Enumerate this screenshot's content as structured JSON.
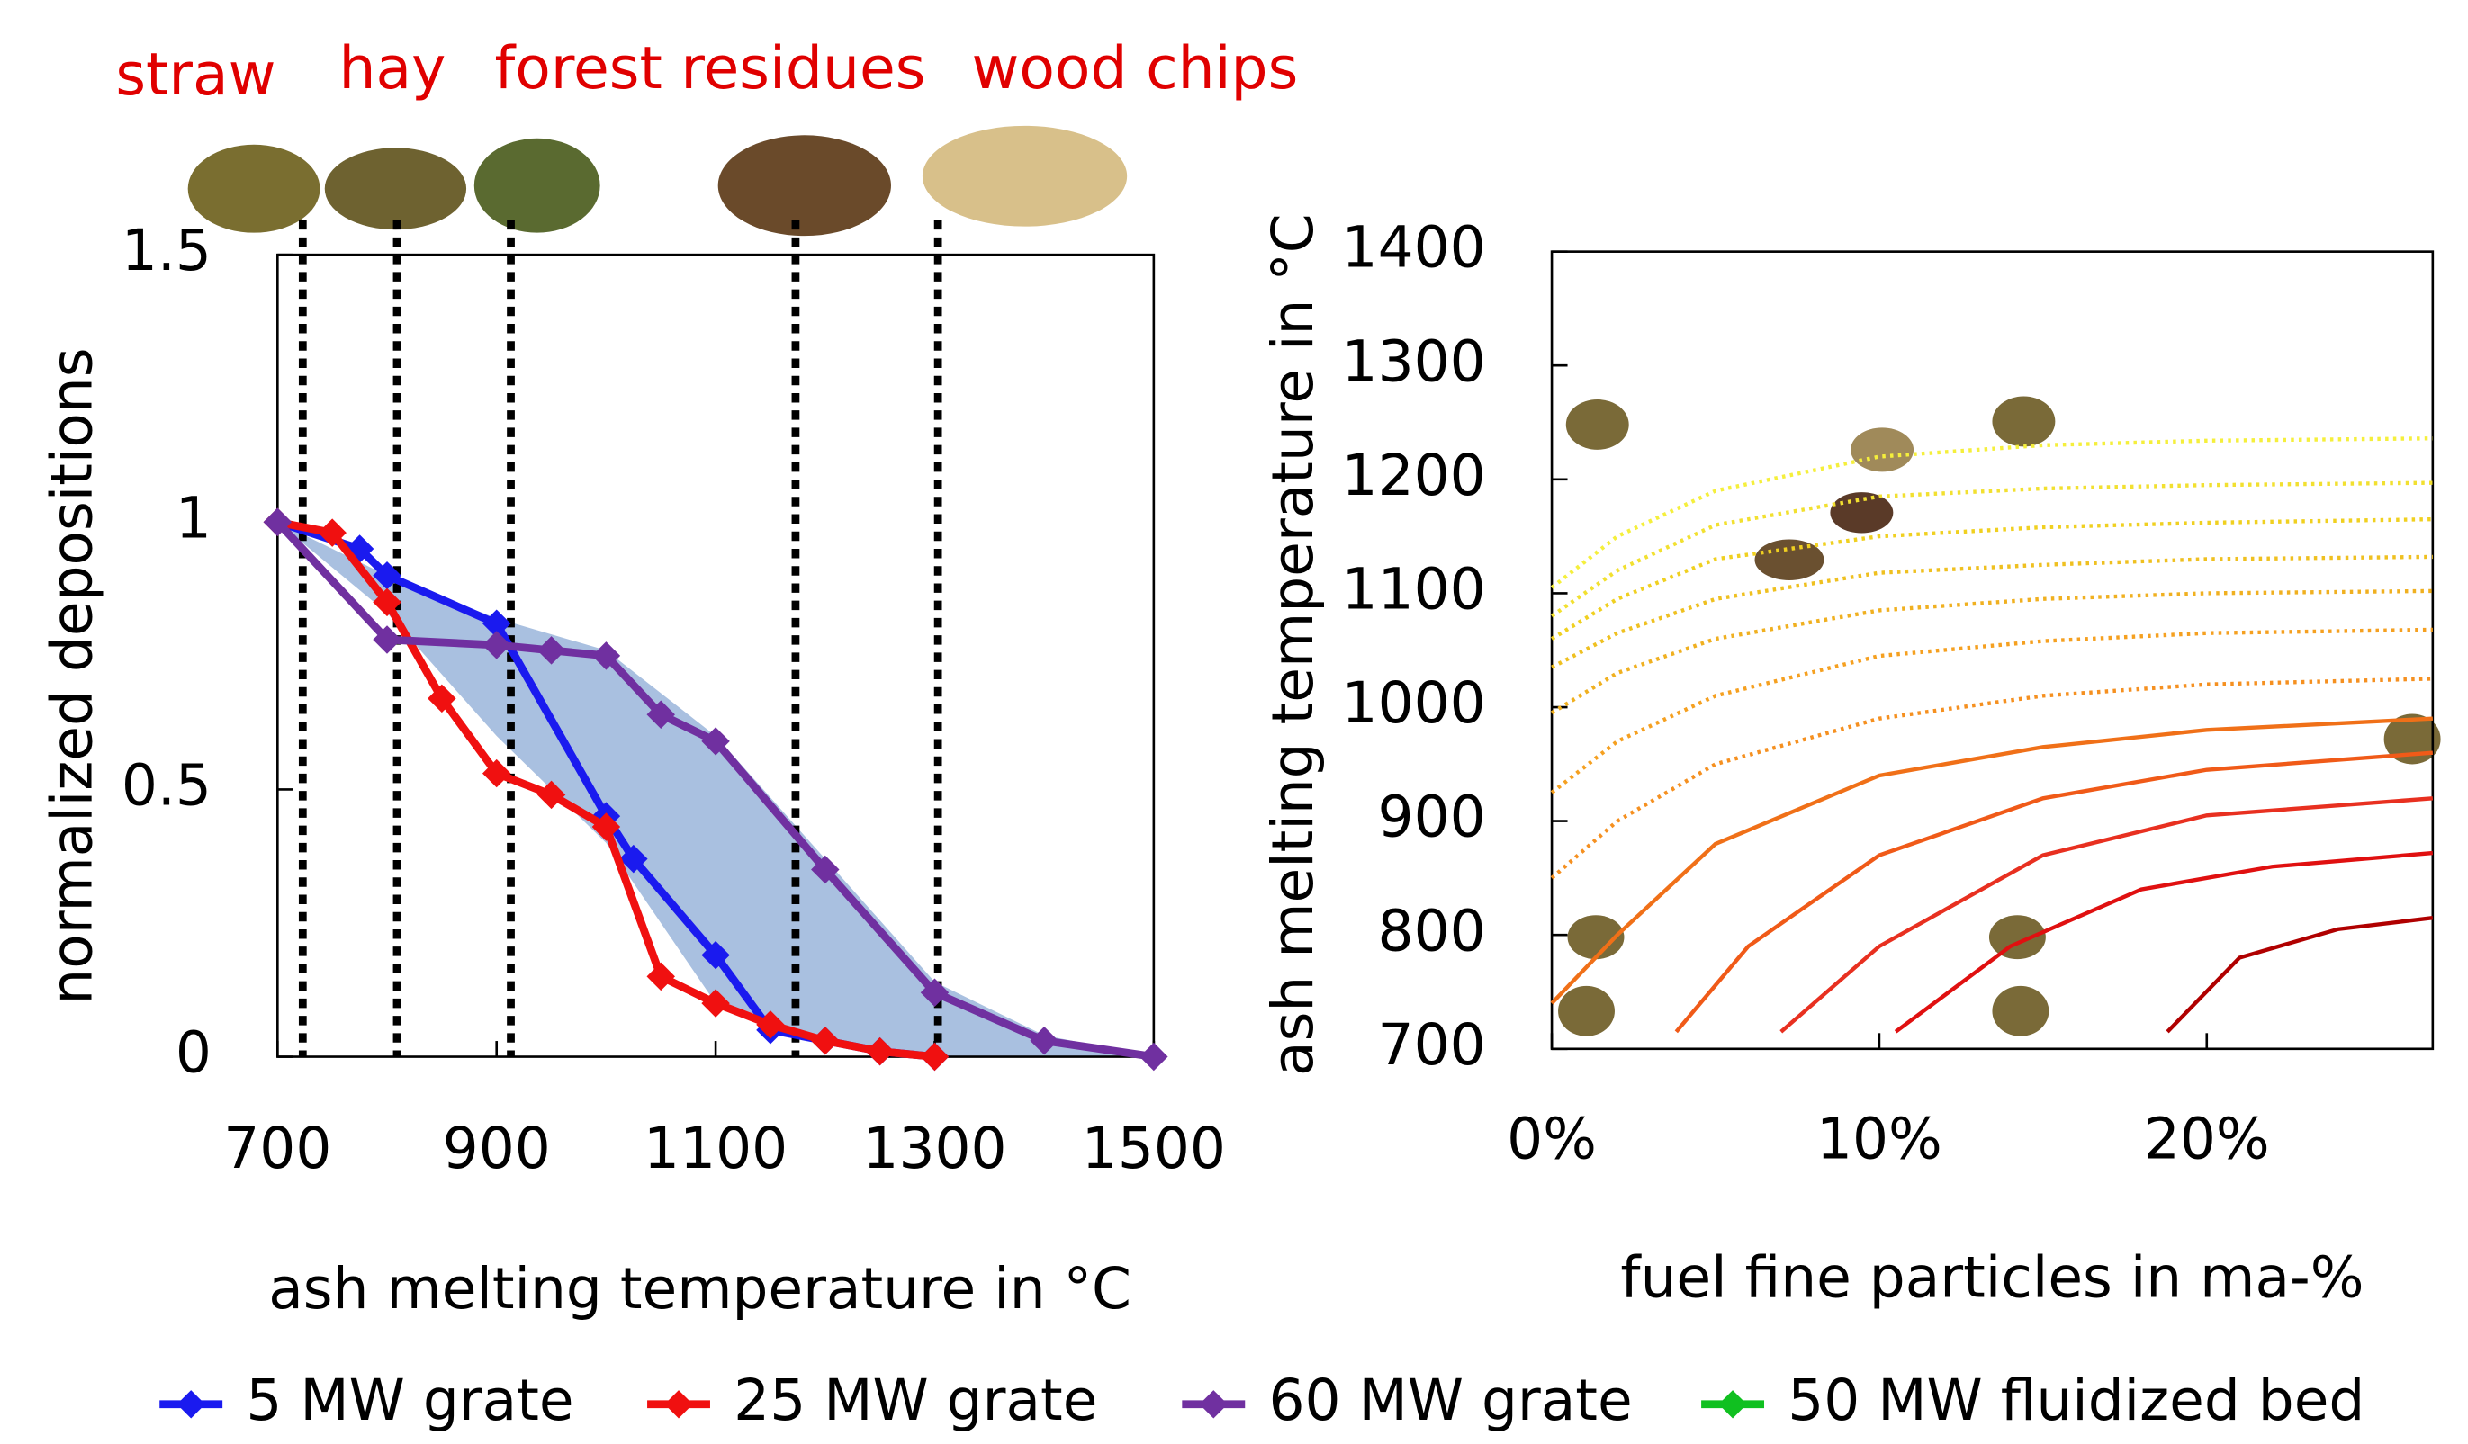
{
  "chart_data": [
    {
      "type": "line",
      "xlabel": "ash melting temperature in °C",
      "ylabel": "normalized   depositions",
      "xlim": [
        700,
        1500
      ],
      "ylim": [
        0,
        1.5
      ],
      "xticks": [
        700,
        900,
        1100,
        1300,
        1500
      ],
      "yticks": [
        0,
        0.5,
        1,
        1.5
      ],
      "annotations": [
        "straw",
        "hay",
        "forest residues",
        "wood chips"
      ],
      "vlines": [
        723,
        809,
        913,
        1173,
        1303
      ],
      "area": {
        "color": "#a9c0e0",
        "x": [
          700,
          800,
          900,
          1000,
          1100,
          1200,
          1300,
          1400,
          1500
        ],
        "upper": [
          1,
          0.9,
          0.82,
          0.76,
          0.6,
          0.37,
          0.14,
          0.04,
          0
        ],
        "lower": [
          1,
          0.83,
          0.6,
          0.4,
          0.1,
          0.03,
          0,
          0,
          0
        ]
      },
      "series": [
        {
          "name": "5 MW grate",
          "color": "#1a1aef",
          "x": [
            700,
            775,
            800,
            900,
            1000,
            1025,
            1100,
            1150,
            1200,
            1250,
            1300
          ],
          "values": [
            1,
            0.95,
            0.9,
            0.81,
            0.45,
            0.37,
            0.19,
            0.05,
            0.03,
            0.01,
            0
          ]
        },
        {
          "name": "25 MW grate",
          "color": "#f01010",
          "x": [
            700,
            750,
            800,
            850,
            900,
            950,
            1000,
            1050,
            1100,
            1150,
            1200,
            1250,
            1300
          ],
          "values": [
            1,
            0.98,
            0.85,
            0.67,
            0.53,
            0.49,
            0.43,
            0.15,
            0.1,
            0.06,
            0.03,
            0.01,
            0
          ]
        },
        {
          "name": "60 MW grate",
          "color": "#7030a0",
          "x": [
            700,
            800,
            900,
            950,
            1000,
            1050,
            1100,
            1200,
            1300,
            1400,
            1500
          ],
          "values": [
            1,
            0.78,
            0.77,
            0.76,
            0.75,
            0.64,
            0.59,
            0.35,
            0.12,
            0.03,
            0
          ]
        },
        {
          "name": "50 MW fluidized bed",
          "color": "#10c020",
          "x": [],
          "values": []
        }
      ]
    },
    {
      "type": "line",
      "xlabel": "fuel fine particles in ma-%",
      "ylabel": "ash melting temperature in °C",
      "xlim": [
        0,
        26.9
      ],
      "ylim": [
        700,
        1400
      ],
      "xticks": [
        {
          "value": 0,
          "label": "0%"
        },
        {
          "value": 10,
          "label": "10%"
        },
        {
          "value": 20,
          "label": "20%"
        }
      ],
      "yticks": [
        700,
        800,
        900,
        1000,
        1100,
        1200,
        1300,
        1400
      ],
      "series": [
        {
          "color": "#f5ef3c",
          "dash": "dotted",
          "x": [
            0,
            2,
            5,
            10,
            15,
            20,
            26.9
          ],
          "values": [
            1105,
            1150,
            1190,
            1220,
            1230,
            1234,
            1236
          ]
        },
        {
          "color": "#f2e030",
          "dash": "dotted",
          "x": [
            0,
            2,
            5,
            10,
            15,
            20,
            26.9
          ],
          "values": [
            1080,
            1120,
            1160,
            1185,
            1192,
            1195,
            1197
          ]
        },
        {
          "color": "#f0d020",
          "dash": "dotted",
          "x": [
            0,
            2,
            5,
            10,
            15,
            20,
            26.9
          ],
          "values": [
            1060,
            1095,
            1130,
            1150,
            1158,
            1162,
            1165
          ]
        },
        {
          "color": "#efc020",
          "dash": "dotted",
          "x": [
            0,
            2,
            5,
            10,
            15,
            20,
            26.9
          ],
          "values": [
            1035,
            1065,
            1095,
            1118,
            1125,
            1130,
            1132
          ]
        },
        {
          "color": "#f0b020",
          "dash": "dotted",
          "x": [
            0,
            2,
            5,
            10,
            15,
            20,
            26.9
          ],
          "values": [
            995,
            1030,
            1060,
            1085,
            1095,
            1100,
            1102
          ]
        },
        {
          "color": "#f5a020",
          "dash": "dotted",
          "x": [
            0,
            2,
            5,
            10,
            15,
            20,
            26.9
          ],
          "values": [
            925,
            970,
            1010,
            1045,
            1058,
            1065,
            1068
          ]
        },
        {
          "color": "#f59020",
          "dash": "dotted",
          "x": [
            0,
            2,
            5,
            10,
            15,
            20,
            26.9
          ],
          "values": [
            850,
            900,
            950,
            990,
            1010,
            1020,
            1025
          ]
        },
        {
          "color": "#f07018",
          "dash": "solid",
          "x": [
            0,
            2,
            5,
            10,
            15,
            20,
            26.9
          ],
          "values": [
            740,
            800,
            880,
            940,
            965,
            980,
            990
          ]
        },
        {
          "color": "#f05a18",
          "dash": "solid",
          "x": [
            3.8,
            6,
            10,
            15,
            20,
            26.9
          ],
          "values": [
            715,
            790,
            870,
            920,
            945,
            960
          ]
        },
        {
          "color": "#e83020",
          "dash": "solid",
          "x": [
            7,
            10,
            15,
            20,
            26.9
          ],
          "values": [
            715,
            790,
            870,
            905,
            920
          ]
        },
        {
          "color": "#e01010",
          "dash": "solid",
          "x": [
            10.5,
            14,
            18,
            22,
            26.9
          ],
          "values": [
            715,
            790,
            840,
            860,
            872
          ]
        },
        {
          "color": "#b00000",
          "dash": "solid",
          "x": [
            18.8,
            21,
            24,
            26.9
          ],
          "values": [
            715,
            780,
            805,
            815
          ]
        }
      ]
    }
  ]
}
